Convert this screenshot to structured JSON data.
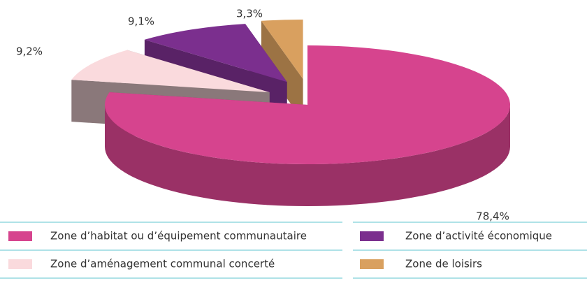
{
  "chart_data": {
    "type": "pie",
    "categories": [
      "Zone d’habitat ou d’équipement communautaire",
      "Zone d’aménagement communal concerté",
      "Zone d’activité économique",
      "Zone de loisirs"
    ],
    "values": [
      78.4,
      9.2,
      9.1,
      3.3
    ],
    "value_labels": [
      "78,4%",
      "9,2%",
      "9,1%",
      "3,3%"
    ],
    "colors": [
      "#d6448e",
      "#fadadd",
      "#7b2f8e",
      "#d9a05f"
    ]
  }
}
